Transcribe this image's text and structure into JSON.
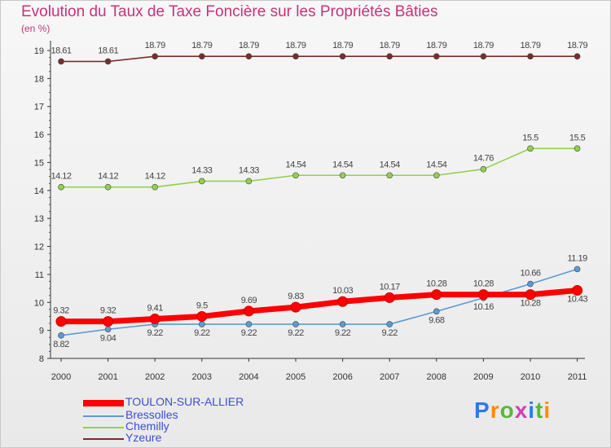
{
  "header": {
    "title": "Evolution du Taux de Taxe Foncière sur les Propriétés Bâties",
    "unit": "(en %)"
  },
  "logo": {
    "text": "Proxiti",
    "letters": [
      "P",
      "r",
      "o",
      "x",
      "i",
      "t",
      "i"
    ]
  },
  "chart_data": {
    "type": "line",
    "title": "Evolution du Taux de Taxe Foncière sur les Propriétés Bâties",
    "ylabel": "(en %)",
    "xlabel": "",
    "categories": [
      "2000",
      "2001",
      "2002",
      "2003",
      "2004",
      "2005",
      "2006",
      "2007",
      "2008",
      "2009",
      "2010",
      "2011"
    ],
    "ylim": [
      8,
      19
    ],
    "yticks": [
      "8",
      "9",
      "10",
      "11",
      "12",
      "13",
      "14",
      "15",
      "16",
      "17",
      "18",
      "19"
    ],
    "legend_position": "bottom",
    "series": [
      {
        "name": "TOULON-SUR-ALLIER",
        "color": "#ff0000",
        "values": [
          9.32,
          9.32,
          9.41,
          9.5,
          9.69,
          9.83,
          10.03,
          10.17,
          10.28,
          10.28,
          10.28,
          10.43
        ],
        "labels": [
          "9.32",
          "9.32",
          "9.41",
          "9.5",
          "9.69",
          "9.83",
          "10.03",
          "10.17",
          "10.28",
          "10.28",
          "10.28",
          "10.43"
        ]
      },
      {
        "name": "Bressolles",
        "color": "#5b9bd5",
        "values": [
          8.82,
          9.04,
          9.22,
          9.22,
          9.22,
          9.22,
          9.22,
          9.22,
          9.68,
          10.16,
          10.66,
          11.19
        ],
        "labels": [
          "8.82",
          "9.04",
          "9.22",
          "9.22",
          "9.22",
          "9.22",
          "9.22",
          "9.22",
          "9.68",
          "10.16",
          "10.66",
          "11.19"
        ]
      },
      {
        "name": "Chemilly",
        "color": "#92d050",
        "values": [
          14.12,
          14.12,
          14.12,
          14.33,
          14.33,
          14.54,
          14.54,
          14.54,
          14.54,
          14.76,
          15.5,
          15.5
        ],
        "labels": [
          "14.12",
          "14.12",
          "14.12",
          "14.33",
          "14.33",
          "14.54",
          "14.54",
          "14.54",
          "14.54",
          "14.76",
          "15.5",
          "15.5"
        ]
      },
      {
        "name": "Yzeure",
        "color": "#7b2c2c",
        "values": [
          18.61,
          18.61,
          18.79,
          18.79,
          18.79,
          18.79,
          18.79,
          18.79,
          18.79,
          18.79,
          18.79,
          18.79
        ],
        "labels": [
          "18.61",
          "18.61",
          "18.79",
          "18.79",
          "18.79",
          "18.79",
          "18.79",
          "18.79",
          "18.79",
          "18.79",
          "18.79",
          "18.79"
        ]
      }
    ]
  }
}
